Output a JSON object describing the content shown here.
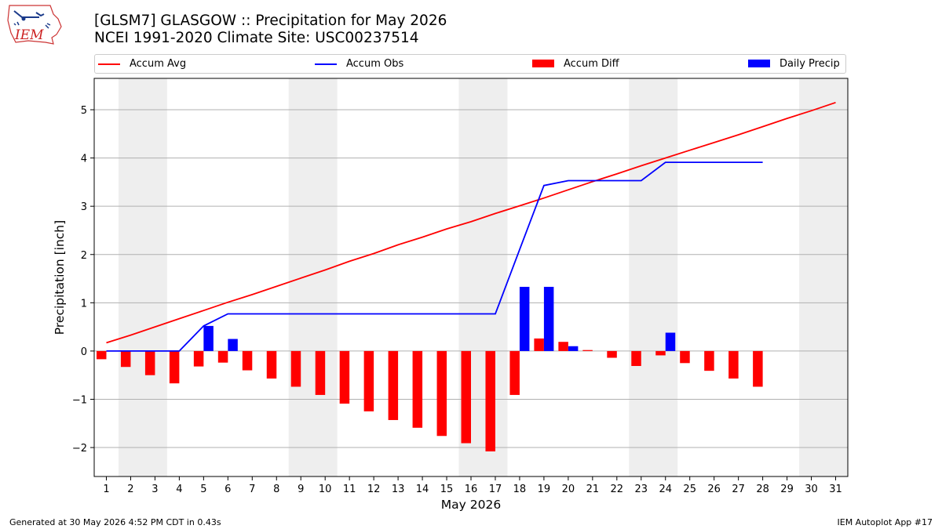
{
  "header": {
    "title_line1": "[GLSM7] GLASGOW :: Precipitation for May 2026",
    "title_line2": "NCEI 1991-2020 Climate Site: USC00237514",
    "logo_text": "IEM"
  },
  "legend": [
    {
      "label": "Accum Avg",
      "color": "#ff0000",
      "kind": "line"
    },
    {
      "label": "Accum Obs",
      "color": "#0000ff",
      "kind": "line"
    },
    {
      "label": "Accum Diff",
      "color": "#ff0000",
      "kind": "bar"
    },
    {
      "label": "Daily Precip",
      "color": "#0000ff",
      "kind": "bar"
    }
  ],
  "footer": {
    "left": "Generated at 30 May 2026 4:52 PM CDT in 0.43s",
    "right": "IEM Autoplot App #17"
  },
  "chart_data": {
    "type": "bar",
    "title": "[GLSM7] GLASGOW :: Precipitation for May 2026",
    "xlabel": "May 2026",
    "ylabel": "Precipitation [inch]",
    "xlim": [
      0.5,
      31.5
    ],
    "ylim": [
      -2.6,
      5.65
    ],
    "grid": true,
    "legend_position": "top",
    "weekend_shading": [
      [
        1.5,
        3.5
      ],
      [
        8.5,
        10.5
      ],
      [
        15.5,
        17.5
      ],
      [
        22.5,
        24.5
      ],
      [
        29.5,
        31.5
      ]
    ],
    "x": [
      1,
      2,
      3,
      4,
      5,
      6,
      7,
      8,
      9,
      10,
      11,
      12,
      13,
      14,
      15,
      16,
      17,
      18,
      19,
      20,
      21,
      22,
      23,
      24,
      25,
      26,
      27,
      28,
      29,
      30,
      31
    ],
    "y_ticks": [
      -2,
      -1,
      0,
      1,
      2,
      3,
      4,
      5
    ],
    "series": [
      {
        "name": "Accum Avg",
        "type": "line",
        "color": "#ff0000",
        "values": [
          0.17,
          0.33,
          0.5,
          0.67,
          0.84,
          1.01,
          1.17,
          1.34,
          1.51,
          1.68,
          1.86,
          2.02,
          2.2,
          2.36,
          2.53,
          2.68,
          2.85,
          3.01,
          3.17,
          3.34,
          3.51,
          3.67,
          3.84,
          4.0,
          4.16,
          4.32,
          4.48,
          4.65,
          4.82,
          4.98,
          5.15
        ]
      },
      {
        "name": "Accum Obs",
        "type": "line",
        "color": "#0000ff",
        "values": [
          0.0,
          0.0,
          0.0,
          0.0,
          0.52,
          0.77,
          0.77,
          0.77,
          0.77,
          0.77,
          0.77,
          0.77,
          0.77,
          0.77,
          0.77,
          0.77,
          0.77,
          2.1,
          3.43,
          3.53,
          3.53,
          3.53,
          3.53,
          3.91,
          3.91,
          3.91,
          3.91,
          3.91,
          null,
          null,
          null
        ]
      },
      {
        "name": "Accum Diff",
        "type": "bar",
        "color": "#ff0000",
        "values": [
          -0.17,
          -0.33,
          -0.5,
          -0.67,
          -0.32,
          -0.24,
          -0.4,
          -0.57,
          -0.74,
          -0.91,
          -1.09,
          -1.25,
          -1.43,
          -1.59,
          -1.76,
          -1.91,
          -2.08,
          -0.91,
          0.26,
          0.19,
          0.02,
          -0.14,
          -0.31,
          -0.09,
          -0.25,
          -0.41,
          -0.57,
          -0.74,
          null,
          null,
          null
        ]
      },
      {
        "name": "Daily Precip",
        "type": "bar",
        "color": "#0000ff",
        "values": [
          0,
          0,
          0,
          0,
          0.52,
          0.25,
          0,
          0,
          0,
          0,
          0,
          0,
          0,
          0,
          0,
          0,
          0,
          1.33,
          1.33,
          0.1,
          0,
          0,
          0,
          0.38,
          0,
          0,
          0,
          0,
          null,
          null,
          null
        ]
      }
    ]
  }
}
